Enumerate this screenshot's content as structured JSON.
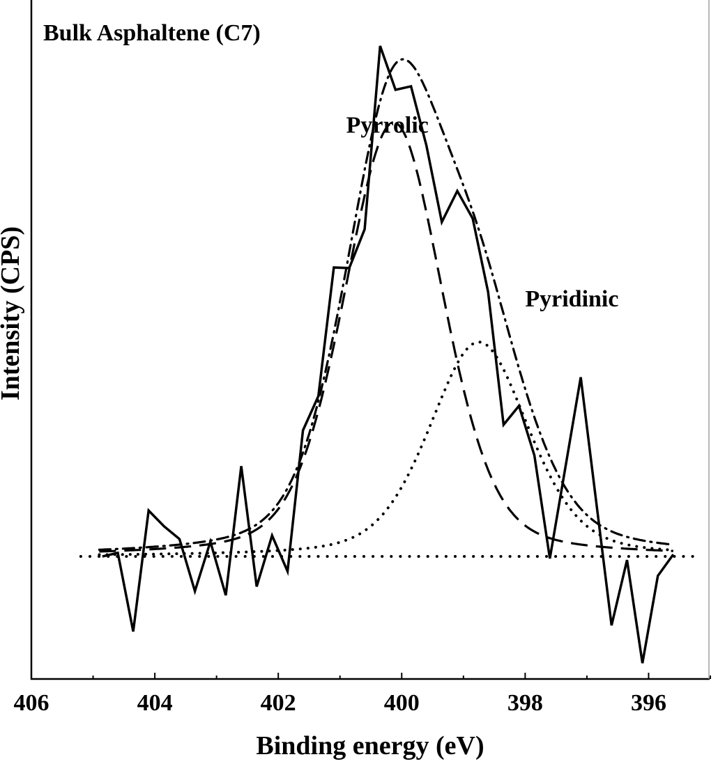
{
  "chart_data": {
    "type": "line",
    "title": "Bulk Asphaltene (C7)",
    "xlabel": "Binding energy (eV)",
    "ylabel": "Intensity (CPS)",
    "xlim": [
      406,
      395
    ],
    "x_reversed": true,
    "ylim": [
      -0.24,
      1.09
    ],
    "y_units": "relative intensity (no y tick labels shown)",
    "x_ticks": [
      406,
      404,
      402,
      400,
      398,
      396
    ],
    "x_tick_labels": [
      "406",
      "404",
      "402",
      "400",
      "398",
      "396"
    ],
    "grid": false,
    "legend": "none",
    "annotations": [
      {
        "text": "Pyrrolic",
        "x": 400.9,
        "y": 0.83
      },
      {
        "text": "Pyridinic",
        "x": 398.0,
        "y": 0.49
      }
    ],
    "measured": {
      "style": "solid",
      "x": [
        404.85,
        404.6,
        404.35,
        404.1,
        403.85,
        403.6,
        403.35,
        403.1,
        402.85,
        402.6,
        402.35,
        402.1,
        401.85,
        401.6,
        401.35,
        401.1,
        400.85,
        400.6,
        400.35,
        400.1,
        399.85,
        399.6,
        399.35,
        399.1,
        398.85,
        398.6,
        398.35,
        398.1,
        397.85,
        397.6,
        397.35,
        397.1,
        396.85,
        396.6,
        396.35,
        396.1,
        395.85,
        395.6
      ],
      "y": [
        0,
        0.007,
        -0.147,
        0.09,
        0.059,
        0.034,
        -0.068,
        0.029,
        -0.076,
        0.177,
        -0.059,
        0.041,
        -0.029,
        0.247,
        0.314,
        0.566,
        0.565,
        0.641,
        1.0,
        0.914,
        0.921,
        0.805,
        0.655,
        0.716,
        0.662,
        0.518,
        0.258,
        0.295,
        0.198,
        -0.004,
        0.173,
        0.351,
        0.108,
        -0.135,
        -0.007,
        -0.209,
        -0.038,
        0.004
      ]
    },
    "components": [
      {
        "name": "Pyrrolic",
        "style": "dashed",
        "center": 400.13,
        "height": 0.85,
        "fwhm": 1.9,
        "lorentz_fraction": 0.3
      },
      {
        "name": "Pyridinic",
        "style": "dotted",
        "center": 398.75,
        "height": 0.42,
        "fwhm": 1.9,
        "lorentz_fraction": 0.35
      }
    ],
    "envelope": {
      "style": "dash-dot",
      "range": [
        404.9,
        395.6
      ]
    },
    "baseline": {
      "style": "dotted",
      "y": 0,
      "range": [
        405.2,
        395.2
      ]
    }
  },
  "colors": {
    "line": "#000000",
    "background": "#ffffff"
  }
}
